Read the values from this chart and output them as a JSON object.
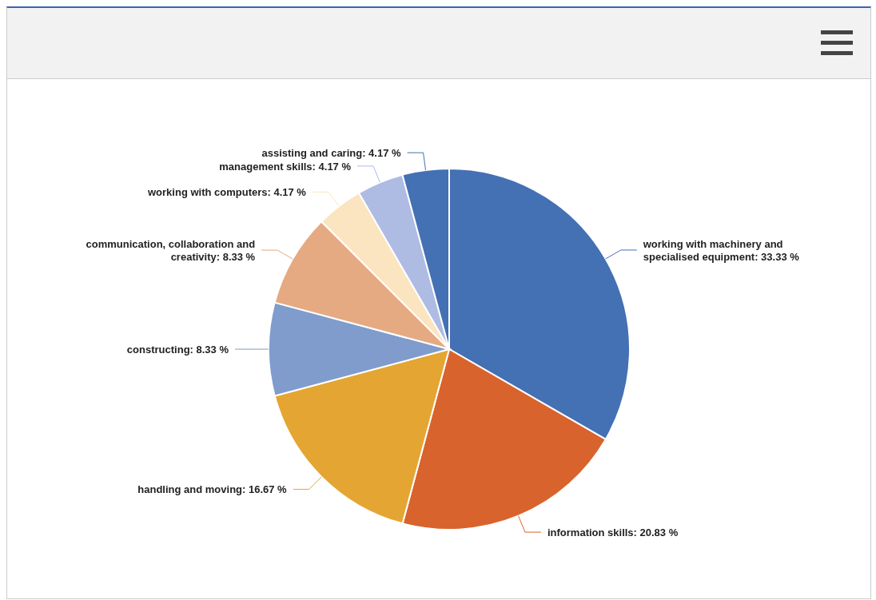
{
  "chart_data": {
    "type": "pie",
    "categories": [
      "working with machinery and specialised equipment",
      "information skills",
      "handling and moving",
      "constructing",
      "communication, collaboration and creativity",
      "working with computers",
      "management skills",
      "assisting and caring"
    ],
    "values": [
      33.33,
      20.83,
      16.67,
      8.33,
      8.33,
      4.17,
      4.17,
      4.17
    ],
    "value_labels": [
      "33.33 %",
      "20.83 %",
      "16.67 %",
      "8.33 %",
      "8.33 %",
      "4.17 %",
      "4.17 %",
      "4.17 %"
    ],
    "colors": [
      "#4470b4",
      "#d9632c",
      "#e5a532",
      "#7f9ccd",
      "#e5aa82",
      "#fae5c0",
      "#aebbe3",
      "#4470b4"
    ],
    "legend": false
  }
}
